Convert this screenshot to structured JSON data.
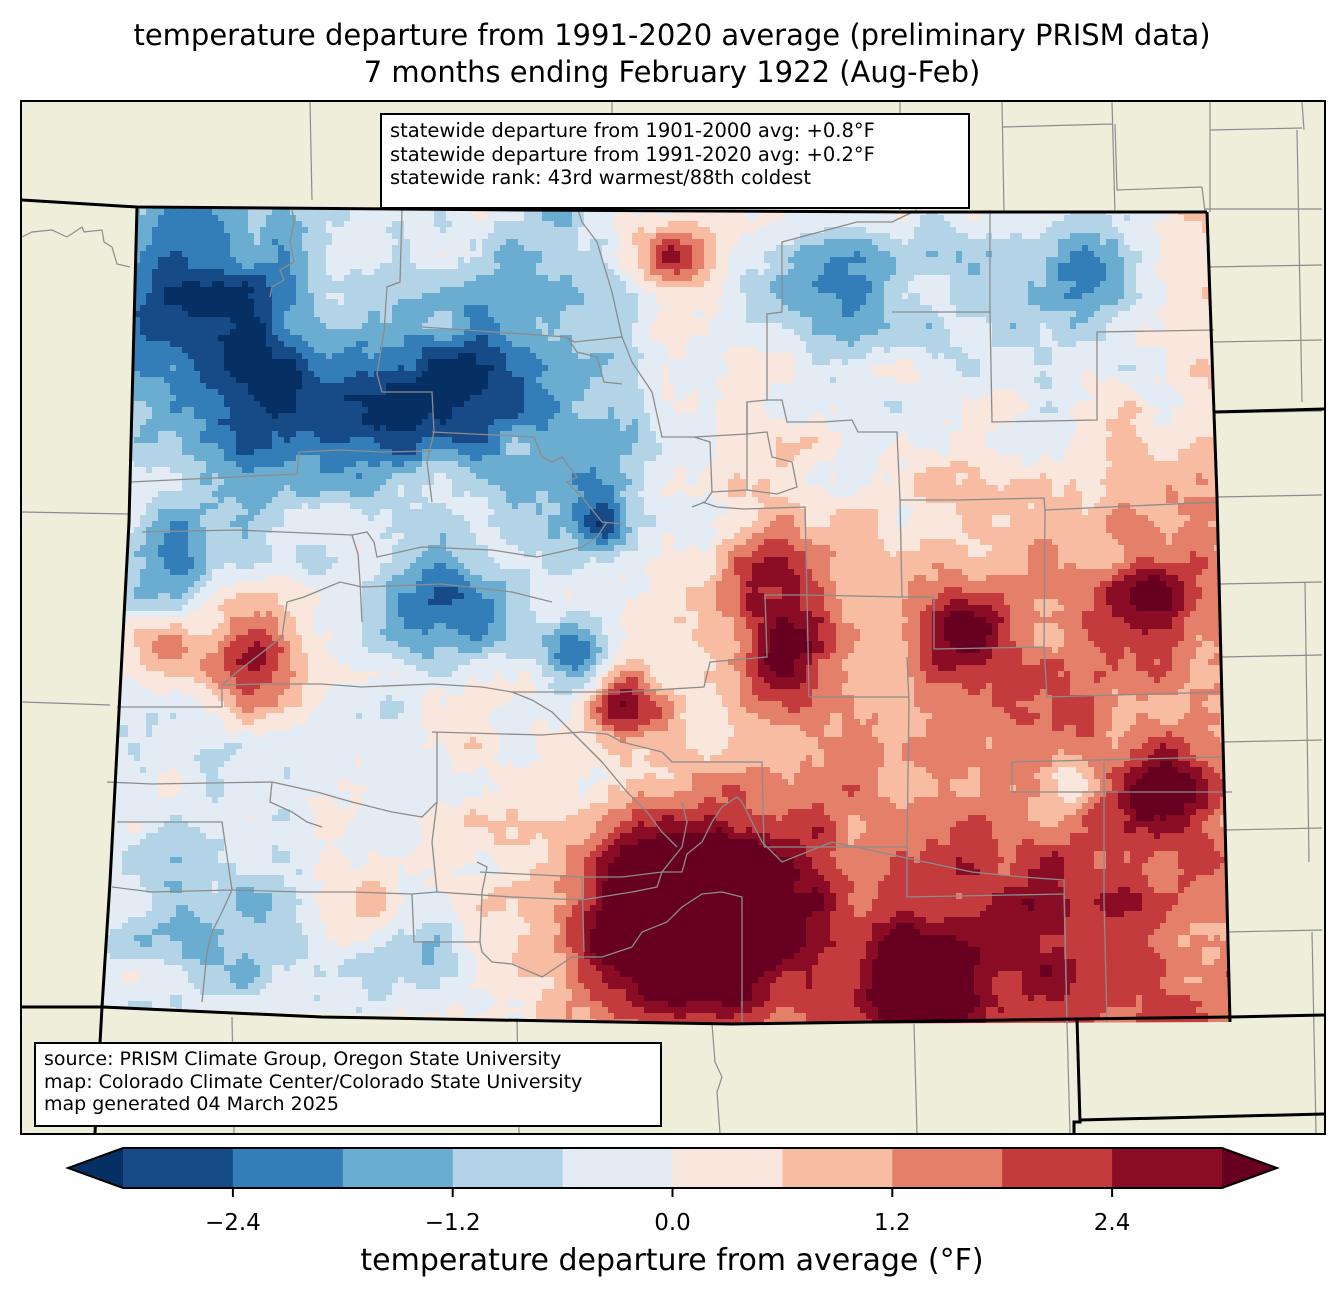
{
  "title": {
    "line1": "temperature departure from 1991-2020 average (preliminary PRISM data)",
    "line2": "7 months ending February 1922 (Aug-Feb)"
  },
  "stats_box": {
    "line1": "statewide departure from 1901-2000 avg: +0.8°F",
    "line2": "statewide departure from 1991-2020 avg: +0.2°F",
    "line3": "statewide rank: 43rd warmest/88th coldest"
  },
  "source_box": {
    "line1": "source: PRISM Climate Group, Oregon State University",
    "line2": "map: Colorado Climate Center/Colorado State University",
    "line3": "map generated 04 March 2025"
  },
  "colors": {
    "land_background": "#efeedb",
    "county_line": "#8c8c8c",
    "state_line": "#000000"
  },
  "chart_data": {
    "type": "heatmap",
    "title": "temperature departure from 1991-2020 average (preliminary PRISM data)",
    "subtitle": "7 months ending February 1922 (Aug-Feb)",
    "region": "Colorado",
    "units": "°F",
    "colorbar": {
      "label": "temperature departure from average (°F)",
      "levels": [
        -3.0,
        -2.4,
        -1.8,
        -1.2,
        -0.6,
        0.0,
        0.6,
        1.2,
        1.8,
        2.4,
        3.0
      ],
      "colors": [
        "#164b87",
        "#337eb8",
        "#6aadd0",
        "#b2d4e6",
        "#e3ecf4",
        "#f9e6dc",
        "#f8bca2",
        "#e47f69",
        "#c33b3c",
        "#8b0c25"
      ],
      "under_color": "#063064",
      "over_color": "#670020",
      "extend": "both",
      "ticks": [
        -2.4,
        -1.2,
        0.0,
        1.2,
        2.4
      ],
      "tick_labels": [
        "−2.4",
        "−1.2",
        "0.0",
        "1.2",
        "2.4"
      ]
    },
    "lon_range": [
      -109.05,
      -102.04
    ],
    "lat_range": [
      36.99,
      41.0
    ],
    "base_value": 0.2,
    "features": [
      {
        "name": "northwest cold",
        "lon": -108.6,
        "lat": 40.5,
        "value": -2.2,
        "spread": 0.45
      },
      {
        "name": "northwest cold 2",
        "lon": -108.2,
        "lat": 40.05,
        "value": -2.0,
        "spread": 0.35
      },
      {
        "name": "park range cold",
        "lon": -106.95,
        "lat": 40.1,
        "value": -2.7,
        "spread": 0.28
      },
      {
        "name": "flat tops cold",
        "lon": -107.5,
        "lat": 40.0,
        "value": -2.0,
        "spread": 0.3
      },
      {
        "name": "north park cold",
        "lon": -106.4,
        "lat": 40.55,
        "value": -1.4,
        "spread": 0.4
      },
      {
        "name": "larimer warm",
        "lon": -105.6,
        "lat": 40.75,
        "value": 2.3,
        "spread": 0.18
      },
      {
        "name": "weld cold",
        "lon": -104.6,
        "lat": 40.6,
        "value": -1.6,
        "spread": 0.3
      },
      {
        "name": "northeast cold",
        "lon": -102.95,
        "lat": 40.65,
        "value": -1.9,
        "spread": 0.22
      },
      {
        "name": "northeast cold plain",
        "lon": -103.4,
        "lat": 40.5,
        "value": -1.0,
        "spread": 0.7
      },
      {
        "name": "central mtn cold",
        "lon": -106.2,
        "lat": 39.7,
        "value": -1.5,
        "spread": 0.4
      },
      {
        "name": "summit cold",
        "lon": -106.0,
        "lat": 39.45,
        "value": -2.2,
        "spread": 0.12
      },
      {
        "name": "elk mtn cold",
        "lon": -107.0,
        "lat": 39.0,
        "value": -2.1,
        "spread": 0.28
      },
      {
        "name": "sawatch cold",
        "lon": -106.2,
        "lat": 38.8,
        "value": -2.5,
        "spread": 0.15
      },
      {
        "name": "grand junction warm",
        "lon": -108.2,
        "lat": 38.78,
        "value": 2.5,
        "spread": 0.22
      },
      {
        "name": "mesa warm",
        "lon": -108.75,
        "lat": 38.8,
        "value": 1.6,
        "spread": 0.15
      },
      {
        "name": "sangre warm",
        "lon": -105.85,
        "lat": 38.55,
        "value": 2.6,
        "spread": 0.15
      },
      {
        "name": "front range warm",
        "lon": -104.85,
        "lat": 38.75,
        "value": 2.4,
        "spread": 0.22
      },
      {
        "name": "palmer warm",
        "lon": -104.9,
        "lat": 39.15,
        "value": 2.0,
        "spread": 0.25
      },
      {
        "name": "san luis warm",
        "lon": -105.6,
        "lat": 37.55,
        "value": 3.1,
        "spread": 0.35
      },
      {
        "name": "san luis warm 2",
        "lon": -105.4,
        "lat": 37.4,
        "value": 2.8,
        "spread": 0.4
      },
      {
        "name": "southcentral warm",
        "lon": -105.0,
        "lat": 37.6,
        "value": 1.9,
        "spread": 0.5
      },
      {
        "name": "las animas warm",
        "lon": -104.0,
        "lat": 37.2,
        "value": 3.0,
        "spread": 0.25
      },
      {
        "name": "southeast warm",
        "lon": -103.2,
        "lat": 37.3,
        "value": 1.6,
        "spread": 0.6
      },
      {
        "name": "kiowa warm",
        "lon": -103.75,
        "lat": 38.95,
        "value": 2.6,
        "spread": 0.18
      },
      {
        "name": "east warm",
        "lon": -102.55,
        "lat": 39.1,
        "value": 1.8,
        "spread": 0.2
      },
      {
        "name": "prowers warm",
        "lon": -102.5,
        "lat": 38.1,
        "value": 2.5,
        "spread": 0.2
      },
      {
        "name": "kiowa cold",
        "lon": -103.05,
        "lat": 38.15,
        "value": -1.6,
        "spread": 0.14
      },
      {
        "name": "eastern plains warm",
        "lon": -103.2,
        "lat": 38.6,
        "value": 0.8,
        "spread": 0.9
      },
      {
        "name": "southwest cold",
        "lon": -108.3,
        "lat": 37.45,
        "value": -1.2,
        "spread": 0.45
      },
      {
        "name": "southwest cold 2",
        "lon": -107.2,
        "lat": 37.3,
        "value": -1.6,
        "spread": 0.2
      },
      {
        "name": "montrose warm",
        "lon": -107.4,
        "lat": 37.6,
        "value": 1.6,
        "spread": 0.12
      },
      {
        "name": "west cold",
        "lon": -108.7,
        "lat": 39.3,
        "value": -1.8,
        "spread": 0.2
      }
    ]
  }
}
